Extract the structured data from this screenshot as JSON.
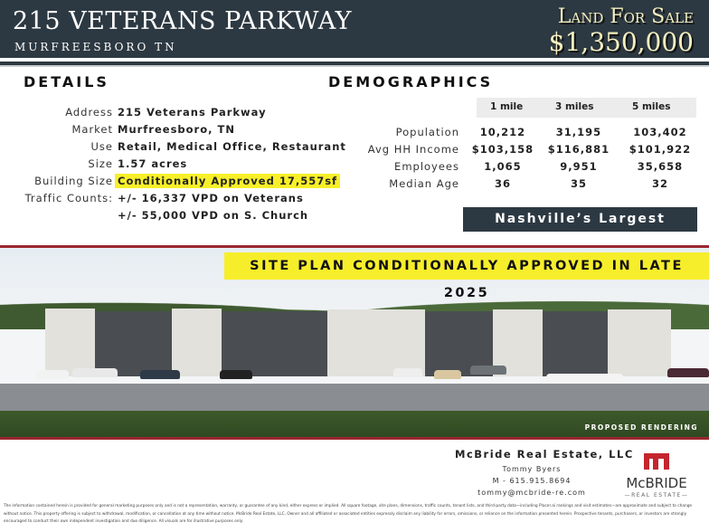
{
  "header": {
    "title": "215 VETERANS PARKWAY",
    "subtitle": "MURFREESBORO TN",
    "status": "Land For Sale",
    "price": "$1,350,000"
  },
  "details": {
    "heading": "DETAILS",
    "rows": [
      {
        "label": "Address",
        "value": "215 Veterans Parkway"
      },
      {
        "label": "Market",
        "value": "Murfreesboro, TN"
      },
      {
        "label": "Use",
        "value": "Retail, Medical Office, Restaurant"
      },
      {
        "label": "Size",
        "value": "1.57 acres"
      },
      {
        "label": "Building Size",
        "value": "Conditionally Approved 17,557sf"
      },
      {
        "label": "Traffic Counts:",
        "value": "+/- 16,337 VPD on Veterans"
      },
      {
        "label": "",
        "value": "+/- 55,000 VPD on S. Church"
      }
    ]
  },
  "demographics": {
    "heading": "DEMOGRAPHICS",
    "columns": [
      "1 mile",
      "3 miles",
      "5 miles"
    ],
    "rows": [
      {
        "label": "Population",
        "values": [
          "10,212",
          "31,195",
          "103,402"
        ]
      },
      {
        "label": "Avg HH Income",
        "values": [
          "$103,158",
          "$116,881",
          "$101,922"
        ]
      },
      {
        "label": "Employees",
        "values": [
          "1,065",
          "9,951",
          "35,658"
        ]
      },
      {
        "label": "Median Age",
        "values": [
          "36",
          "35",
          "32"
        ]
      }
    ],
    "tagline": "Nashville’s Largest Suburb"
  },
  "photo": {
    "banner": "SITE PLAN CONDITIONALLY APPROVED IN LATE 2025",
    "caption": "PROPOSED RENDERING"
  },
  "contact": {
    "company": "McBride Real Estate, LLC",
    "name": "Tommy Byers",
    "phone": "M - 615.915.8694",
    "email": "tommy@mcbride-re.com",
    "logo_text": "McBRIDE",
    "logo_sub": "REAL ESTATE"
  },
  "disclaimer": "The information contained herein is provided for general marketing purposes only and is not a representation, warranty, or guarantee of any kind, either express or implied. All square footage, site plans, dimensions, traffic counts, tenant lists, and third-party data—including Placer.ai rankings and visit estimates—are approximate and subject to change without notice. This property offering is subject to withdrawal, modification, or cancellation at any time without notice. McBride Real Estate, LLC, Owner and all affiliated or associated entities expressly disclaim any liability for errors, omissions, or reliance on the information presented herein. Prospective tenants, purchasers, or investors are strongly encouraged to conduct their own independent investigation and due diligence. All visuals are for illustrative purposes only.",
  "colors": {
    "navy": "#2d3942",
    "highlight": "#f7f029",
    "accent_red": "#9b2630",
    "price_text": "#f4efc0"
  }
}
